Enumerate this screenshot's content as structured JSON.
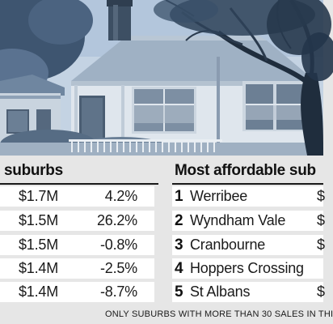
{
  "left_table": {
    "heading": "suburbs",
    "rows": [
      {
        "price": "$1.7M",
        "change": "4.2%"
      },
      {
        "price": "$1.5M",
        "change": "26.2%"
      },
      {
        "price": "$1.5M",
        "change": "-0.8%"
      },
      {
        "price": "$1.4M",
        "change": "-2.5%"
      },
      {
        "price": "$1.4M",
        "change": "-8.7%"
      }
    ]
  },
  "right_table": {
    "heading": "Most affordable sub",
    "rows": [
      {
        "rank": "1",
        "suburb": "Werribee",
        "value": "$"
      },
      {
        "rank": "2",
        "suburb": "Wyndham Vale",
        "value": "$"
      },
      {
        "rank": "3",
        "suburb": "Cranbourne",
        "value": "$"
      },
      {
        "rank": "4",
        "suburb": "Hoppers Crossing",
        "value": ""
      },
      {
        "rank": "5",
        "suburb": "St Albans",
        "value": "$"
      }
    ]
  },
  "footnote": "ONLY SUBURBS WITH MORE THAN 30 SALES IN THI",
  "colors": {
    "background": "#e6e6e6",
    "row_background": "#ffffff",
    "text": "#1a1a1a",
    "photo_tint": "#b9cbdf"
  }
}
